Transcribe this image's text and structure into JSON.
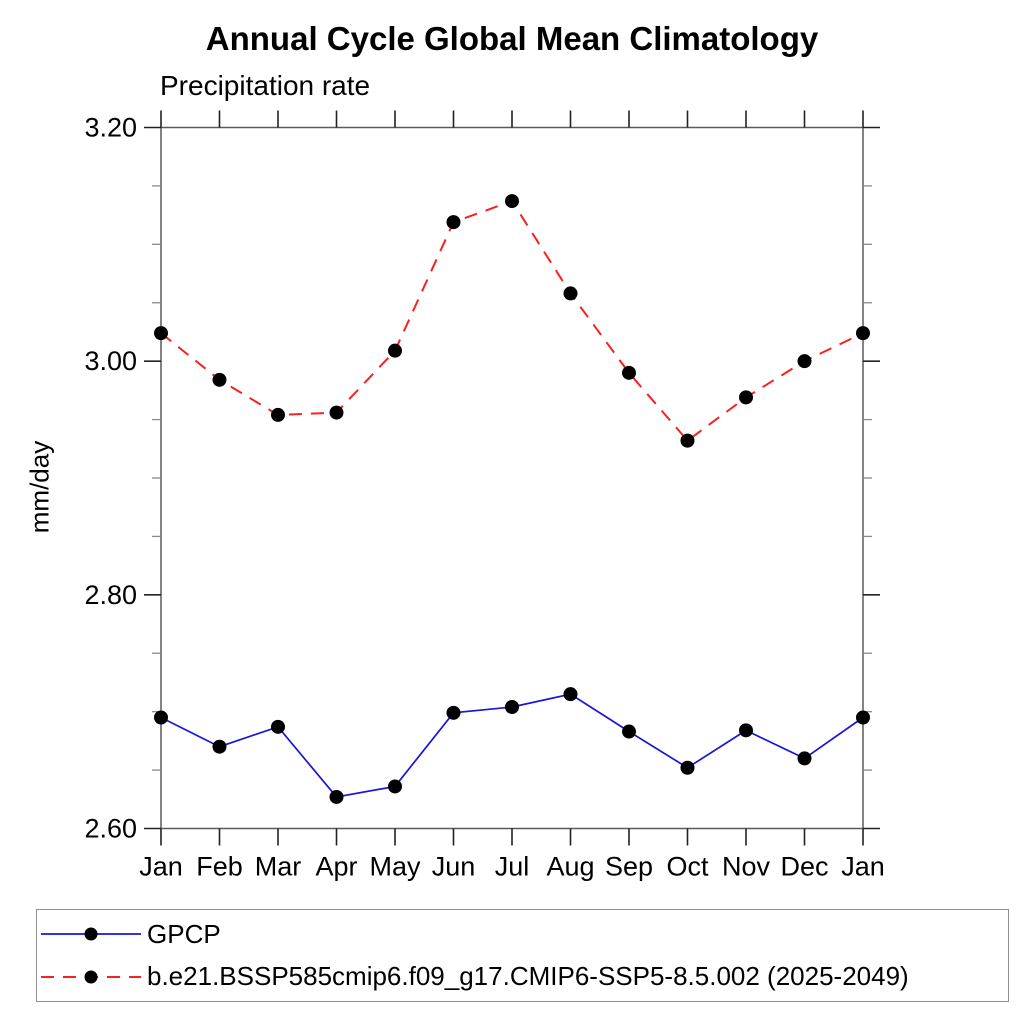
{
  "chart_data": {
    "type": "line",
    "title": "Annual Cycle Global Mean Climatology",
    "subtitle": "Precipitation rate",
    "ylabel": "mm/day",
    "xlabel": "",
    "categories": [
      "Jan",
      "Feb",
      "Mar",
      "Apr",
      "May",
      "Jun",
      "Jul",
      "Aug",
      "Sep",
      "Oct",
      "Nov",
      "Dec",
      "Jan"
    ],
    "ylim": [
      2.6,
      3.2
    ],
    "ytick_labels": [
      "3.20",
      "3.00",
      "2.80",
      "2.60"
    ],
    "ytick_values": [
      3.2,
      3.0,
      2.8,
      2.6
    ],
    "ytick_minor_step": 0.05,
    "grid": false,
    "legend_position": "bottom-box",
    "series": [
      {
        "name": "GPCP",
        "color": "#1515dc",
        "line_style": "solid",
        "marker": "filled-circle",
        "marker_color": "#000000",
        "values": [
          2.695,
          2.67,
          2.687,
          2.627,
          2.636,
          2.699,
          2.704,
          2.715,
          2.683,
          2.652,
          2.684,
          2.66,
          2.695
        ]
      },
      {
        "name": "b.e21.BSSP585cmip6.f09_g17.CMIP6-SSP5-8.5.002 (2025-2049)",
        "color": "#f92020",
        "line_style": "dashed",
        "marker": "filled-circle",
        "marker_color": "#000000",
        "values": [
          3.024,
          2.984,
          2.954,
          2.956,
          3.009,
          3.119,
          3.137,
          3.058,
          2.99,
          2.932,
          2.969,
          3.0,
          3.024
        ]
      }
    ]
  },
  "colors": {
    "background": "#ffffff",
    "axis_frame": "#5a5a5a",
    "tick_major": "#222222",
    "tick_minor": "#8a8a8a",
    "text": "#000000",
    "legend_border": "#909090"
  }
}
